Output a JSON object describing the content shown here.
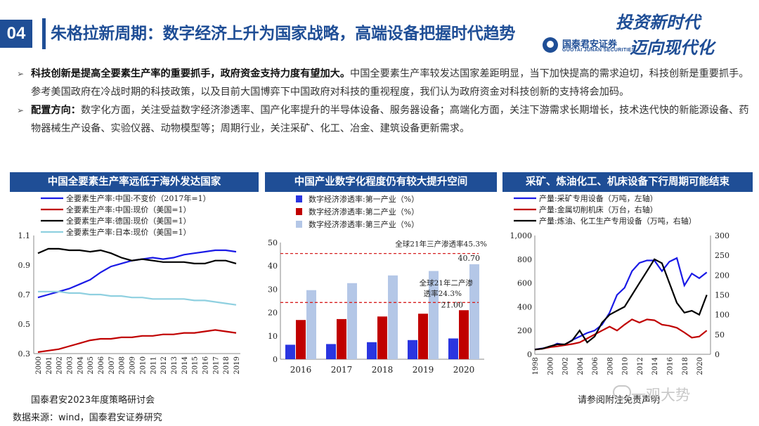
{
  "header": {
    "page_number": "04",
    "title": "朱格拉新周期：数字经济上升为国家战略，高端设备把握时代趋势",
    "logo_cn": "国泰君安证券",
    "logo_en": "GUOTAI JUNAN SECURITIES",
    "slogan_line1": "投资新时代",
    "slogan_line2": "迈向现代化",
    "brand_color": "#1f4e96"
  },
  "bullets": [
    {
      "bold": "科技创新是提高全要素生产率的重要抓手，政府资金支持力度有望加大。",
      "text": "中国全要素生产率较发达国家差距明显，当下加快提高的需求迫切，科技创新是重要抓手。参考美国政府在冷战时期的科技政策，以及目前大国博弈下中国政府对科技的重视程度，我们认为政府资金对科技创新的支持将会加码。"
    },
    {
      "bold": "配置方向：",
      "text": "数字化方面，关注受益数字经济渗透率、国产化率提升的半导体设备、服务器设备；高端化方面，关注下游需求长期增长，技术迭代快的新能源设备、药物器械生产设备、实验仪器、动物模型等；周期行业，关注采矿、化工、冶金、建筑设备更新需求。"
    }
  ],
  "footer": {
    "event": "国泰君安2023年度策略研讨会",
    "source": "数据来源：wind，国泰君安证券研究",
    "disclaimer": "请参阅附注免责声明",
    "watermark": "一观大势"
  },
  "chart_data": [
    {
      "type": "line",
      "title": "中国全要素生产率远低于海外发达国家",
      "x": [
        "2000",
        "2001",
        "2002",
        "2003",
        "2004",
        "2005",
        "2006",
        "2007",
        "2008",
        "2009",
        "2010",
        "2011",
        "2012",
        "2013",
        "2014",
        "2015",
        "2016",
        "2017",
        "2018",
        "2019"
      ],
      "ylim": [
        0.3,
        1.1
      ],
      "yticks": [
        "1.1",
        "0.9",
        "0.7",
        "0.5",
        "0.3"
      ],
      "legend_position": "top-left",
      "series": [
        {
          "name": "全要素生产率:中国:不变价（2017年=1）",
          "color": "#1a1ae6",
          "values": [
            0.68,
            0.7,
            0.72,
            0.74,
            0.77,
            0.8,
            0.85,
            0.89,
            0.91,
            0.93,
            0.94,
            0.95,
            0.94,
            0.95,
            0.97,
            0.98,
            0.99,
            1.0,
            1.0,
            0.99
          ]
        },
        {
          "name": "全要素生产率:中国:现价（美国=1）",
          "color": "#c00000",
          "values": [
            0.31,
            0.32,
            0.33,
            0.35,
            0.37,
            0.39,
            0.4,
            0.4,
            0.41,
            0.41,
            0.42,
            0.42,
            0.43,
            0.43,
            0.44,
            0.44,
            0.45,
            0.46,
            0.45,
            0.44
          ]
        },
        {
          "name": "全要素生产率:德国:现价（美国=1）",
          "color": "#000000",
          "values": [
            0.98,
            1.01,
            1.01,
            1.0,
            1.0,
            0.99,
            1.0,
            0.98,
            0.95,
            0.93,
            0.94,
            0.93,
            0.92,
            0.92,
            0.92,
            0.91,
            0.91,
            0.93,
            0.93,
            0.91
          ]
        },
        {
          "name": "全要素生产率:日本:现价（美国=1）",
          "color": "#8fd0e0",
          "values": [
            0.72,
            0.72,
            0.72,
            0.71,
            0.71,
            0.7,
            0.7,
            0.69,
            0.69,
            0.68,
            0.68,
            0.67,
            0.67,
            0.67,
            0.67,
            0.66,
            0.66,
            0.65,
            0.64,
            0.63
          ]
        }
      ]
    },
    {
      "type": "bar",
      "title": "中国产业数字化程度仍有较大提升空间",
      "categories": [
        "2016",
        "2017",
        "2018",
        "2019",
        "2020"
      ],
      "ylim": [
        0,
        50
      ],
      "yticks": [
        "50",
        "40",
        "30",
        "20",
        "10",
        "0"
      ],
      "legend_position": "top-left",
      "series": [
        {
          "name": "数字经济渗透率:第一产业（%）",
          "color": "#2a35e0",
          "values": [
            6.2,
            6.5,
            7.3,
            8.2,
            8.9
          ]
        },
        {
          "name": "数字经济渗透率:第二产业（%）",
          "color": "#c00000",
          "values": [
            16.8,
            17.2,
            18.3,
            19.5,
            21.0
          ]
        },
        {
          "name": "数字经济渗透率:第三产业（%）",
          "color": "#b4c7e7",
          "values": [
            29.6,
            32.6,
            35.9,
            37.8,
            40.7
          ]
        }
      ],
      "data_labels": [
        "40.70",
        "21.00"
      ],
      "reference_lines": [
        {
          "label": "全球21年三产渗透率45.3%",
          "value": 45.3
        },
        {
          "label_line1": "全球21年二产渗",
          "label_line2": "透率24.3%",
          "value": 24.3
        }
      ]
    },
    {
      "type": "line",
      "title": "采矿、炼油化工、机床设备下行周期可能结束",
      "x": [
        "1998",
        "2000",
        "2002",
        "2004",
        "2006",
        "2008",
        "2010",
        "2012",
        "2014",
        "2016",
        "2018",
        "2020"
      ],
      "ylim_left": [
        0,
        1000
      ],
      "ylim_right": [
        0,
        300
      ],
      "yticks_left": [
        "1,000",
        "800",
        "600",
        "400",
        "200",
        "0"
      ],
      "yticks_right": [
        "300",
        "250",
        "200",
        "150",
        "100",
        "50",
        "0"
      ],
      "legend_position": "top-left",
      "series": [
        {
          "name": "产量:采矿专用设备（万吨，左轴）",
          "color": "#1a1ae6",
          "axis": "left",
          "x": [
            1998,
            1999,
            2000,
            2001,
            2002,
            2003,
            2004,
            2005,
            2006,
            2007,
            2008,
            2009,
            2010,
            2011,
            2012,
            2013,
            2014,
            2015,
            2016,
            2017,
            2018,
            2019,
            2020,
            2021
          ],
          "values": [
            40,
            50,
            60,
            90,
            80,
            120,
            150,
            180,
            200,
            250,
            350,
            500,
            560,
            700,
            770,
            790,
            790,
            700,
            780,
            810,
            580,
            680,
            640,
            690
          ]
        },
        {
          "name": "产量:金属切削机床（万台，右轴）",
          "color": "#c00000",
          "axis": "right",
          "x": [
            1998,
            1999,
            2000,
            2001,
            2002,
            2003,
            2004,
            2005,
            2006,
            2007,
            2008,
            2009,
            2010,
            2011,
            2012,
            2013,
            2014,
            2015,
            2016,
            2017,
            2018,
            2019,
            2020,
            2021
          ],
          "values": [
            12,
            14,
            18,
            20,
            23,
            26,
            30,
            40,
            50,
            60,
            70,
            60,
            75,
            88,
            80,
            88,
            86,
            75,
            72,
            67,
            55,
            42,
            45,
            60
          ]
        },
        {
          "name": "产量:炼油、化工生产专用设备（万吨，右轴）",
          "color": "#000000",
          "axis": "right",
          "x": [
            1998,
            1999,
            2000,
            2001,
            2002,
            2003,
            2004,
            2005,
            2006,
            2007,
            2008,
            2009,
            2010,
            2011,
            2012,
            2013,
            2014,
            2015,
            2016,
            2017,
            2018,
            2019,
            2020,
            2021
          ],
          "values": [
            12,
            14,
            20,
            25,
            25,
            35,
            60,
            30,
            45,
            80,
            100,
            110,
            120,
            150,
            180,
            210,
            240,
            230,
            180,
            130,
            105,
            110,
            100,
            150
          ]
        }
      ]
    }
  ]
}
